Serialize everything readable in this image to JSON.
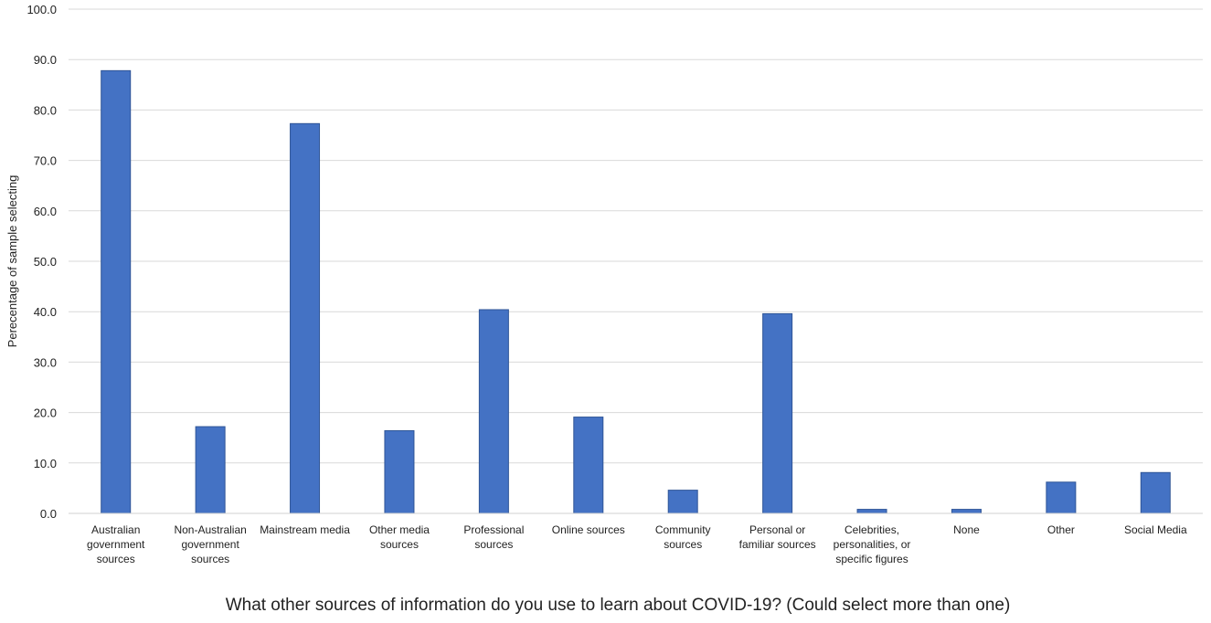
{
  "chart_data": {
    "type": "bar",
    "title": "",
    "ylabel": "Perecentage of sample selecting",
    "xlabel": "What other sources of information do you use to learn about COVID-19? (Could select more than one)",
    "ylim": [
      0,
      100
    ],
    "yticks": [
      "0.0",
      "10.0",
      "20.0",
      "30.0",
      "40.0",
      "50.0",
      "60.0",
      "70.0",
      "80.0",
      "90.0",
      "100.0"
    ],
    "grid": true,
    "bar_color": "#4472C4",
    "categories": [
      [
        "Australian",
        "government",
        "sources"
      ],
      [
        "Non-Australian",
        "government",
        "sources"
      ],
      [
        "Mainstream media"
      ],
      [
        "Other media",
        "sources"
      ],
      [
        "Professional",
        "sources"
      ],
      [
        "Online sources"
      ],
      [
        "Community",
        "sources"
      ],
      [
        "Personal or",
        "familiar sources"
      ],
      [
        "Celebrities,",
        "personalities, or",
        "specific figures"
      ],
      [
        "None"
      ],
      [
        "Other"
      ],
      [
        "Social Media"
      ]
    ],
    "values": [
      87.8,
      17.2,
      77.3,
      16.4,
      40.4,
      19.1,
      4.6,
      39.6,
      0.8,
      0.8,
      6.2,
      8.1
    ]
  }
}
